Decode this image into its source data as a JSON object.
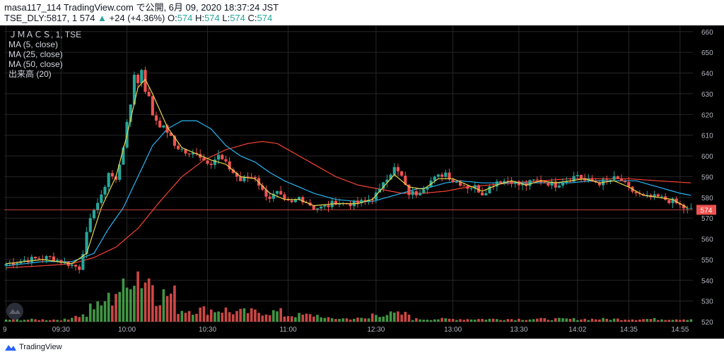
{
  "header": {
    "line1": "masa117_114 TradingView.com で公開, 6月 09, 2020 18:37:24 JST",
    "line2_prefix": "TSE_DLY:5817, 1 574",
    "change": "+24 (+4.36%)",
    "o_label": "O:",
    "o_value": "574",
    "h_label": "H:",
    "h_value": "574",
    "l_label": "L:",
    "l_value": "574",
    "c_label": "C:",
    "c_value": "574"
  },
  "legend": {
    "symbol": "ＪＭＡＣＳ, 1, TSE",
    "ma5": "MA (5, close)",
    "ma25": "MA (25, close)",
    "ma50": "MA (50, close)",
    "volume": "出来高 (20)"
  },
  "footer": {
    "brand": "TradingView"
  },
  "colors": {
    "up": "#26a69a",
    "down": "#ef5350",
    "ma5": "#e8d44d",
    "ma25": "#29b6f6",
    "ma50": "#f44336",
    "grid": "#262626",
    "axis_text": "#b2b5be",
    "price_label_bg": "#ef5350",
    "vol_up": "#4caf50",
    "vol_down": "#ef5350"
  },
  "icons": {
    "logo": "tradingview-logo-icon",
    "watermark": "tradingview-watermark-icon"
  },
  "chart_data": {
    "type": "candlestick",
    "title": "ＪＭＡＣＳ, 1, TSE",
    "ylim": [
      520,
      663
    ],
    "y_ticks": [
      660,
      650,
      640,
      630,
      620,
      610,
      600,
      590,
      580,
      570,
      560,
      550,
      540,
      530,
      520
    ],
    "x_labels": [
      {
        "label": "9",
        "index": 0
      },
      {
        "label": "09:30",
        "index": 15
      },
      {
        "label": "10:00",
        "index": 33
      },
      {
        "label": "10:30",
        "index": 55
      },
      {
        "label": "11:00",
        "index": 77
      },
      {
        "label": "12:30",
        "index": 101
      },
      {
        "label": "13:00",
        "index": 122
      },
      {
        "label": "13:30",
        "index": 140
      },
      {
        "label": "14:02",
        "index": 156
      },
      {
        "label": "14:35",
        "index": 170
      },
      {
        "label": "14:55",
        "index": 184
      }
    ],
    "last_price": 574,
    "last_price_color": "#ef5350",
    "grid": true,
    "volume_panel": true,
    "series_legend": [
      "MA (5, close)",
      "MA (25, close)",
      "MA (50, close)",
      "出来高 (20)"
    ],
    "anchors": [
      [
        0,
        548
      ],
      [
        6,
        550
      ],
      [
        12,
        551
      ],
      [
        17,
        548
      ],
      [
        20,
        546
      ],
      [
        22,
        562
      ],
      [
        24,
        575
      ],
      [
        26,
        580
      ],
      [
        28,
        592
      ],
      [
        30,
        588
      ],
      [
        32,
        605
      ],
      [
        34,
        625
      ],
      [
        35,
        640
      ],
      [
        36,
        635
      ],
      [
        37,
        642
      ],
      [
        38,
        632
      ],
      [
        39,
        628
      ],
      [
        40,
        620
      ],
      [
        42,
        615
      ],
      [
        44,
        612
      ],
      [
        46,
        605
      ],
      [
        48,
        603
      ],
      [
        50,
        600
      ],
      [
        52,
        602
      ],
      [
        54,
        598
      ],
      [
        56,
        597
      ],
      [
        58,
        600
      ],
      [
        60,
        596
      ],
      [
        62,
        592
      ],
      [
        64,
        588
      ],
      [
        66,
        590
      ],
      [
        68,
        590
      ],
      [
        70,
        583
      ],
      [
        72,
        580
      ],
      [
        74,
        582
      ],
      [
        76,
        578
      ],
      [
        78,
        577
      ],
      [
        80,
        580
      ],
      [
        82,
        578
      ],
      [
        84,
        575
      ],
      [
        86,
        575
      ],
      [
        88,
        576
      ],
      [
        90,
        578
      ],
      [
        92,
        577
      ],
      [
        95,
        577
      ],
      [
        98,
        578
      ],
      [
        100,
        580
      ],
      [
        102,
        583
      ],
      [
        103,
        588
      ],
      [
        105,
        592
      ],
      [
        106,
        594
      ],
      [
        108,
        590
      ],
      [
        109,
        585
      ],
      [
        110,
        582
      ],
      [
        112,
        582
      ],
      [
        114,
        585
      ],
      [
        116,
        588
      ],
      [
        118,
        590
      ],
      [
        120,
        592
      ],
      [
        122,
        588
      ],
      [
        124,
        587
      ],
      [
        126,
        585
      ],
      [
        128,
        585
      ],
      [
        130,
        582
      ],
      [
        132,
        585
      ],
      [
        134,
        588
      ],
      [
        136,
        588
      ],
      [
        138,
        588
      ],
      [
        140,
        586
      ],
      [
        142,
        586
      ],
      [
        144,
        588
      ],
      [
        146,
        588
      ],
      [
        148,
        587
      ],
      [
        150,
        586
      ],
      [
        152,
        588
      ],
      [
        154,
        589
      ],
      [
        156,
        591
      ],
      [
        158,
        588
      ],
      [
        160,
        588
      ],
      [
        162,
        587
      ],
      [
        164,
        588
      ],
      [
        166,
        589
      ],
      [
        168,
        588
      ],
      [
        170,
        584
      ],
      [
        172,
        582
      ],
      [
        174,
        580
      ],
      [
        176,
        580
      ],
      [
        178,
        580
      ],
      [
        180,
        579
      ],
      [
        182,
        578
      ],
      [
        184,
        576
      ],
      [
        186,
        574
      ],
      [
        187,
        574
      ]
    ],
    "ma5": [
      [
        0,
        548
      ],
      [
        10,
        550
      ],
      [
        18,
        548
      ],
      [
        22,
        553
      ],
      [
        26,
        575
      ],
      [
        30,
        590
      ],
      [
        33,
        610
      ],
      [
        36,
        633
      ],
      [
        38,
        637
      ],
      [
        40,
        630
      ],
      [
        44,
        614
      ],
      [
        48,
        604
      ],
      [
        52,
        601
      ],
      [
        56,
        598
      ],
      [
        60,
        596
      ],
      [
        64,
        590
      ],
      [
        68,
        589
      ],
      [
        72,
        582
      ],
      [
        76,
        579
      ],
      [
        80,
        579
      ],
      [
        84,
        576
      ],
      [
        90,
        577
      ],
      [
        96,
        577
      ],
      [
        100,
        579
      ],
      [
        104,
        587
      ],
      [
        106,
        591
      ],
      [
        110,
        585
      ],
      [
        114,
        584
      ],
      [
        118,
        589
      ],
      [
        122,
        589
      ],
      [
        126,
        586
      ],
      [
        130,
        583
      ],
      [
        134,
        586
      ],
      [
        138,
        588
      ],
      [
        142,
        586
      ],
      [
        146,
        588
      ],
      [
        150,
        587
      ],
      [
        154,
        588
      ],
      [
        158,
        589
      ],
      [
        162,
        587
      ],
      [
        166,
        588
      ],
      [
        170,
        585
      ],
      [
        174,
        581
      ],
      [
        178,
        580
      ],
      [
        182,
        579
      ],
      [
        186,
        575
      ]
    ],
    "ma25": [
      [
        0,
        547
      ],
      [
        10,
        549
      ],
      [
        18,
        549
      ],
      [
        24,
        553
      ],
      [
        28,
        565
      ],
      [
        32,
        575
      ],
      [
        36,
        590
      ],
      [
        40,
        605
      ],
      [
        44,
        613
      ],
      [
        48,
        617
      ],
      [
        52,
        617
      ],
      [
        56,
        613
      ],
      [
        60,
        605
      ],
      [
        64,
        600
      ],
      [
        68,
        597
      ],
      [
        72,
        592
      ],
      [
        76,
        588
      ],
      [
        80,
        585
      ],
      [
        84,
        582
      ],
      [
        90,
        579
      ],
      [
        96,
        578
      ],
      [
        100,
        578
      ],
      [
        104,
        580
      ],
      [
        108,
        582
      ],
      [
        112,
        584
      ],
      [
        116,
        585
      ],
      [
        120,
        587
      ],
      [
        124,
        588
      ],
      [
        130,
        587
      ],
      [
        136,
        587
      ],
      [
        142,
        587
      ],
      [
        148,
        587
      ],
      [
        154,
        587
      ],
      [
        160,
        588
      ],
      [
        166,
        588
      ],
      [
        172,
        588
      ],
      [
        178,
        585
      ],
      [
        184,
        582
      ],
      [
        187,
        581
      ]
    ],
    "ma50": [
      [
        0,
        546
      ],
      [
        10,
        547
      ],
      [
        18,
        548
      ],
      [
        24,
        551
      ],
      [
        30,
        556
      ],
      [
        36,
        565
      ],
      [
        42,
        578
      ],
      [
        48,
        590
      ],
      [
        54,
        598
      ],
      [
        60,
        603
      ],
      [
        66,
        606
      ],
      [
        70,
        607
      ],
      [
        74,
        606
      ],
      [
        78,
        602
      ],
      [
        84,
        596
      ],
      [
        90,
        590
      ],
      [
        96,
        586
      ],
      [
        102,
        584
      ],
      [
        108,
        582
      ],
      [
        114,
        582
      ],
      [
        120,
        583
      ],
      [
        126,
        585
      ],
      [
        132,
        586
      ],
      [
        138,
        587
      ],
      [
        146,
        588
      ],
      [
        154,
        589
      ],
      [
        162,
        589
      ],
      [
        170,
        589
      ],
      [
        178,
        588
      ],
      [
        187,
        587
      ]
    ],
    "volume": [
      {
        "from": 0,
        "to": 17,
        "level": 0.04
      },
      {
        "from": 18,
        "to": 22,
        "level": 0.12
      },
      {
        "from": 23,
        "to": 26,
        "level": 0.28
      },
      {
        "from": 27,
        "to": 29,
        "level": 0.42
      },
      {
        "from": 30,
        "to": 33,
        "level": 0.6
      },
      {
        "from": 34,
        "to": 36,
        "level": 0.95
      },
      {
        "from": 37,
        "to": 40,
        "level": 0.8
      },
      {
        "from": 41,
        "to": 46,
        "level": 0.5
      },
      {
        "from": 47,
        "to": 60,
        "level": 0.22
      },
      {
        "from": 61,
        "to": 75,
        "level": 0.18
      },
      {
        "from": 76,
        "to": 86,
        "level": 0.12
      },
      {
        "from": 87,
        "to": 99,
        "level": 0.06
      },
      {
        "from": 100,
        "to": 110,
        "level": 0.14
      },
      {
        "from": 111,
        "to": 187,
        "level": 0.05
      }
    ]
  }
}
